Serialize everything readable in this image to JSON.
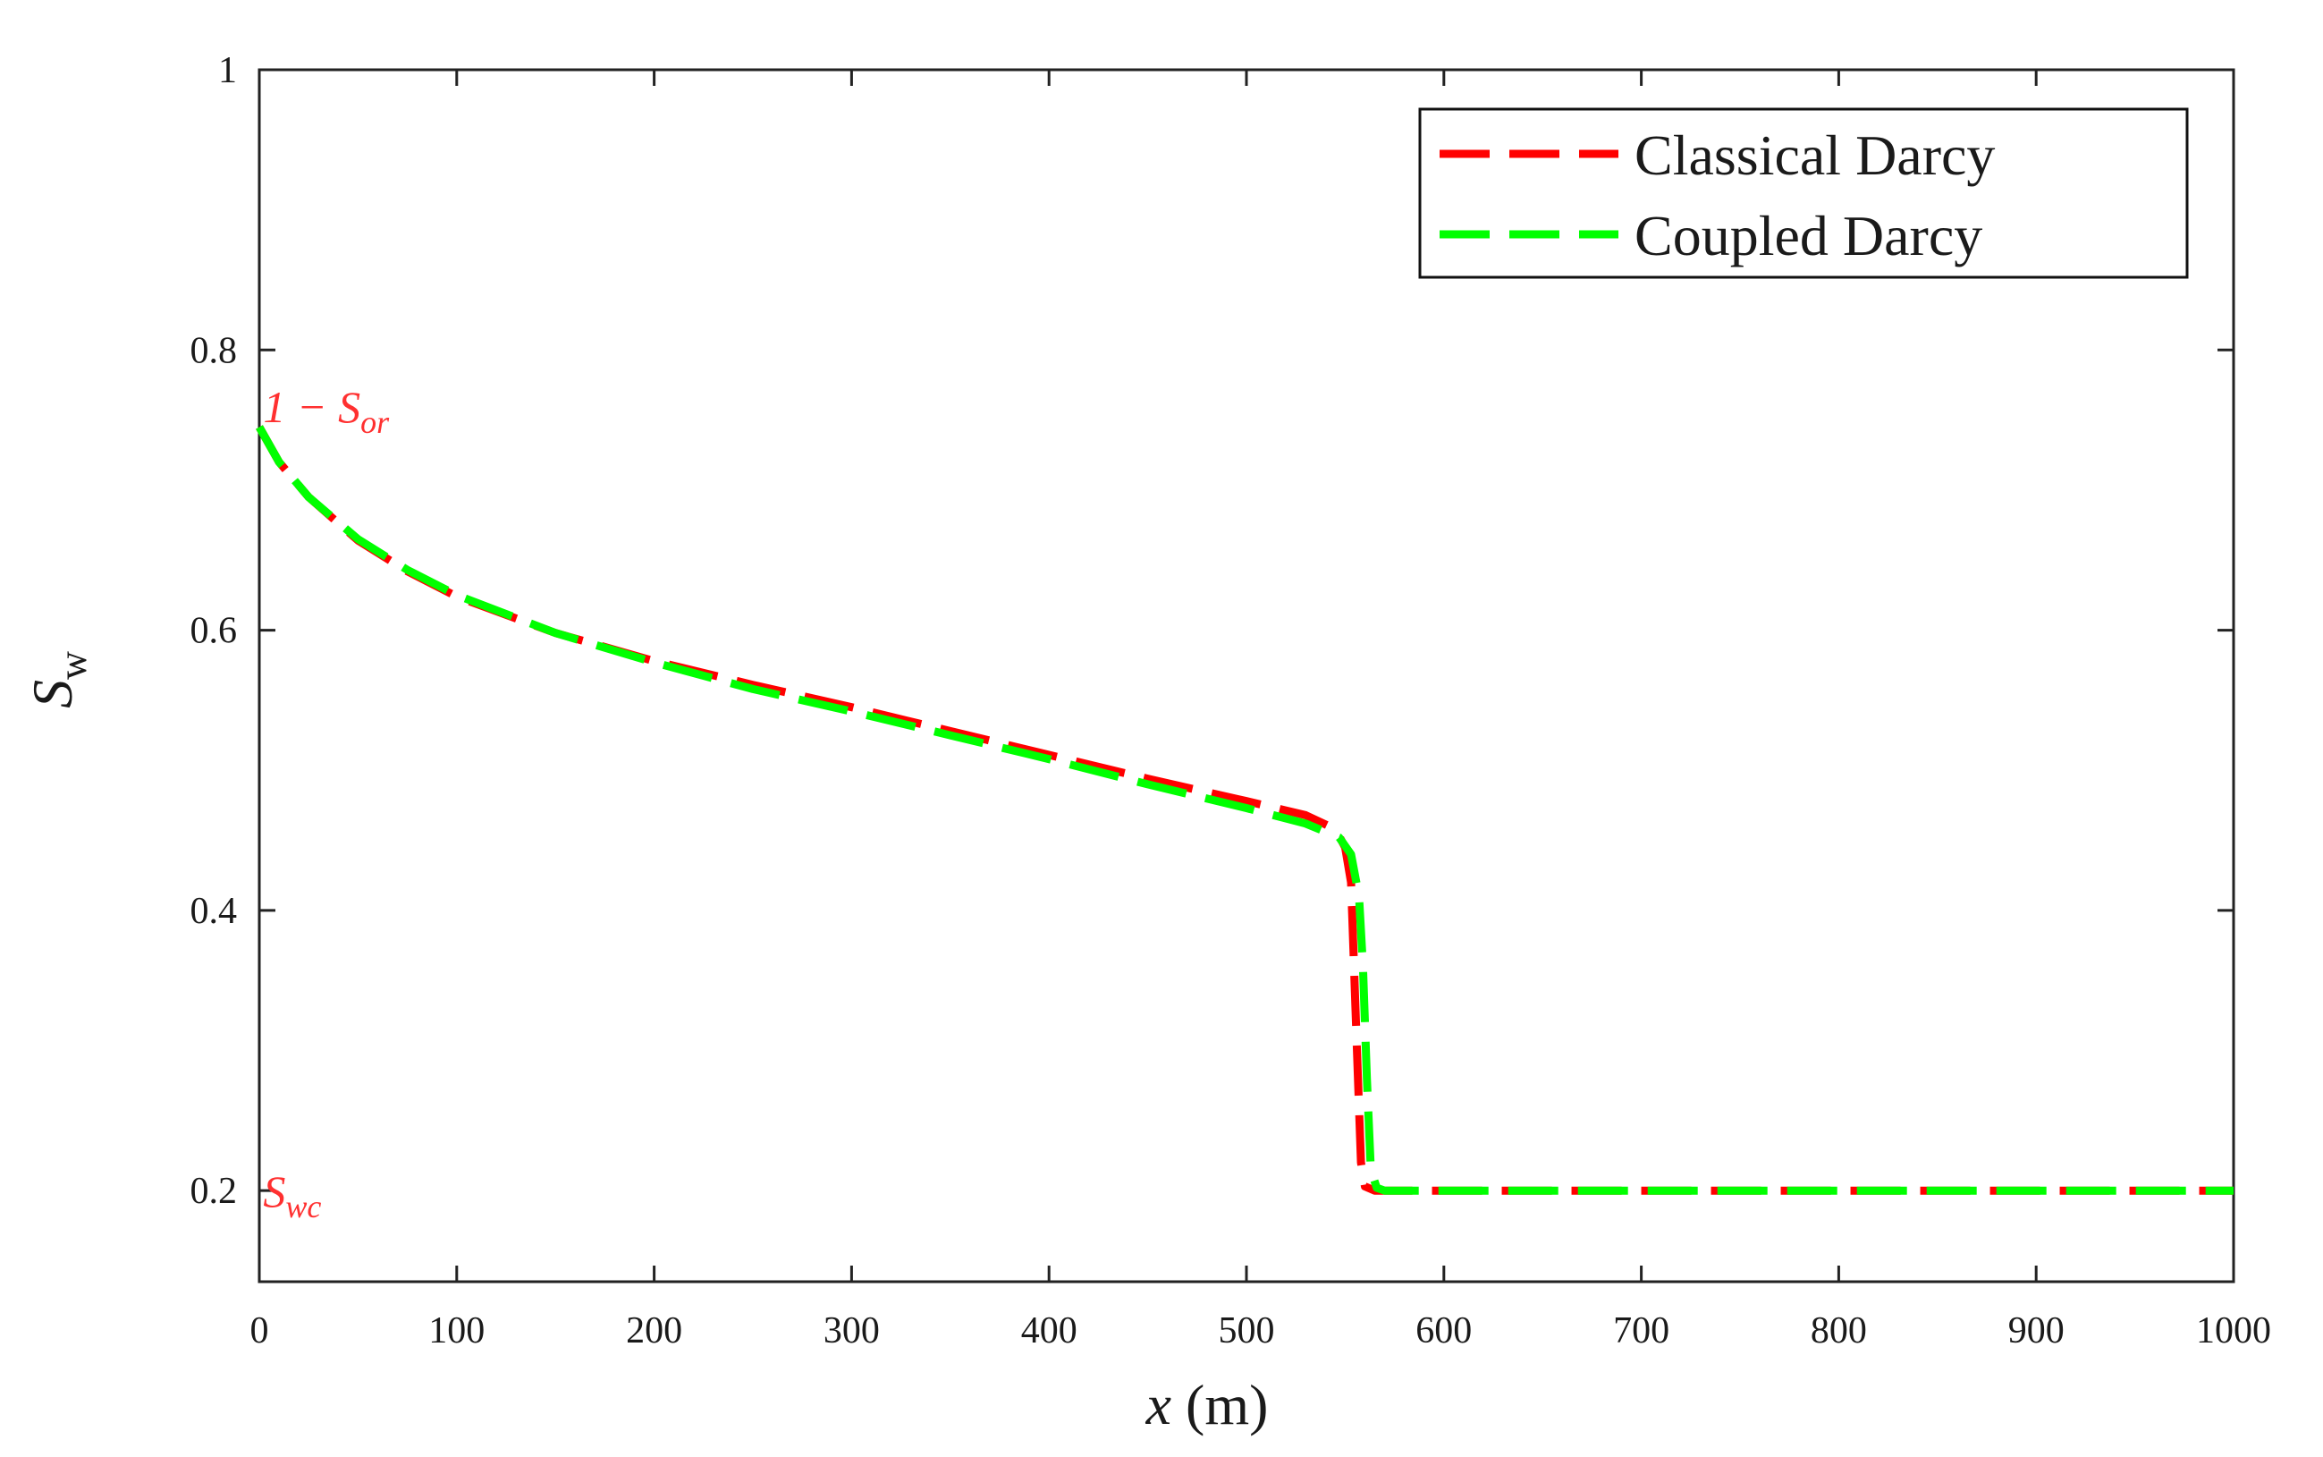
{
  "chart_data": {
    "type": "line",
    "xlabel": {
      "var": "x",
      "unit": "(m)"
    },
    "ylabel": {
      "var": "S",
      "sub": "w"
    },
    "xlim": [
      0,
      1000
    ],
    "ylim": [
      0.135,
      1
    ],
    "xticks": [
      0,
      100,
      200,
      300,
      400,
      500,
      600,
      700,
      800,
      900,
      1000
    ],
    "yticks": [
      0.2,
      0.4,
      0.6,
      0.8,
      1
    ],
    "xtick_labels": [
      "0",
      "100",
      "200",
      "300",
      "400",
      "500",
      "600",
      "700",
      "800",
      "900",
      "1000"
    ],
    "ytick_labels": [
      "0.2",
      "0.4",
      "0.6",
      "0.8",
      "1"
    ],
    "grid": false,
    "legend_position": "top-right",
    "annotations": [
      {
        "text": "1 − S",
        "sub": "or",
        "x": 2,
        "y": 0.76,
        "color": "#ff3030"
      },
      {
        "text": "S",
        "sub": "wc",
        "x": 2,
        "y": 0.2,
        "color": "#ff3030"
      }
    ],
    "series": [
      {
        "name": "Classical Darcy",
        "color": "#ff0000",
        "style": "dashed",
        "x": [
          0,
          10,
          25,
          50,
          75,
          100,
          150,
          200,
          250,
          300,
          350,
          400,
          450,
          500,
          530,
          545,
          550,
          553,
          554,
          556,
          558,
          560,
          565,
          600,
          700,
          800,
          900,
          1000
        ],
        "y": [
          0.745,
          0.72,
          0.695,
          0.664,
          0.642,
          0.624,
          0.598,
          0.578,
          0.561,
          0.545,
          0.528,
          0.511,
          0.494,
          0.478,
          0.468,
          0.458,
          0.445,
          0.42,
          0.38,
          0.3,
          0.22,
          0.203,
          0.2,
          0.2,
          0.2,
          0.2,
          0.2,
          0.2
        ]
      },
      {
        "name": "Coupled Darcy",
        "color": "#00ff00",
        "style": "dashed",
        "x": [
          0,
          10,
          25,
          50,
          75,
          100,
          150,
          200,
          250,
          300,
          350,
          400,
          450,
          500,
          530,
          547,
          553,
          557,
          559,
          561,
          563,
          566,
          570,
          600,
          700,
          800,
          900,
          1000
        ],
        "y": [
          0.745,
          0.72,
          0.695,
          0.665,
          0.643,
          0.625,
          0.598,
          0.577,
          0.558,
          0.542,
          0.525,
          0.508,
          0.49,
          0.473,
          0.462,
          0.452,
          0.44,
          0.41,
          0.36,
          0.28,
          0.215,
          0.202,
          0.2,
          0.2,
          0.2,
          0.2,
          0.2,
          0.2
        ]
      }
    ]
  }
}
